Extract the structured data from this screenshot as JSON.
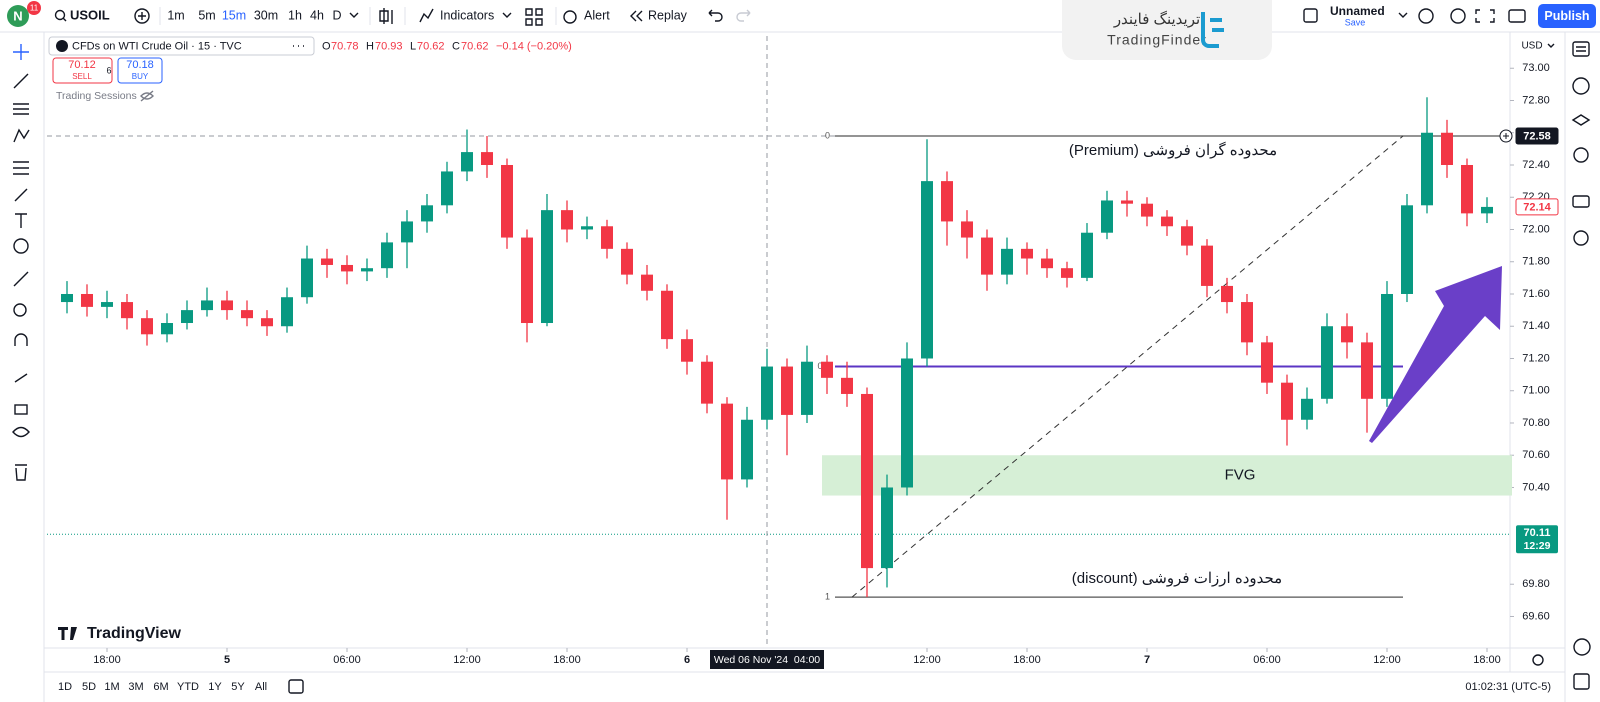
{
  "top_bar": {
    "avatar": "N",
    "badge": "11",
    "symbol": "USOIL",
    "intervals": [
      "1m",
      "5m",
      "15m",
      "30m",
      "1h",
      "4h",
      "D"
    ],
    "indicators": "Indicators",
    "alert": "Alert",
    "replay": "Replay",
    "layout_name": "Unnamed",
    "save": "Save",
    "publish": "Publish"
  },
  "watermark": {
    "persian": "تریدینگ فایندر",
    "latin": "TradingFinder"
  },
  "legend": {
    "title": "CFDs on WTI Crude Oil · 15 · TVC",
    "o_label": "O",
    "open": "70.78",
    "h_label": "H",
    "high": "70.93",
    "l_label": "L",
    "low": "70.62",
    "c_label": "C",
    "close": "70.62",
    "change": "−0.14 (−0.20%)"
  },
  "trade": {
    "sell_price": "70.12",
    "sell": "SELL",
    "spread": "6",
    "buy_price": "70.18",
    "buy": "BUY"
  },
  "indicator_name": "Trading Sessions",
  "brand": "TradingView",
  "currency": "USD",
  "bottom_bar": {
    "ranges": [
      "1D",
      "5D",
      "1M",
      "3M",
      "6M",
      "YTD",
      "1Y",
      "5Y",
      "All"
    ],
    "clock": "01:02:31 (UTC-5)"
  },
  "chart_data": {
    "type": "candlestick",
    "up_color": "#089981",
    "down_color": "#f23645",
    "x": [
      1,
      2,
      3,
      4,
      5,
      6,
      7,
      8,
      9,
      10,
      11,
      12,
      13,
      14,
      15,
      16,
      17,
      18,
      19,
      20,
      21,
      22,
      23,
      24,
      25,
      26,
      27,
      28,
      29,
      30,
      31,
      32,
      33,
      34,
      35,
      36,
      37,
      38,
      39,
      40,
      41,
      42,
      43,
      44,
      45,
      46,
      47,
      48,
      49,
      50,
      51,
      52,
      53,
      54,
      55,
      56,
      57,
      58,
      59,
      60,
      61,
      62,
      63,
      64,
      65,
      66,
      67,
      68,
      69,
      70,
      71,
      72
    ],
    "open": [
      71.55,
      71.6,
      71.52,
      71.55,
      71.45,
      71.35,
      71.42,
      71.5,
      71.56,
      71.5,
      71.45,
      71.4,
      71.58,
      71.82,
      71.78,
      71.74,
      71.76,
      71.92,
      72.05,
      72.15,
      72.36,
      72.48,
      72.4,
      71.95,
      71.42,
      72.12,
      72.0,
      72.02,
      71.88,
      71.72,
      71.62,
      71.32,
      71.18,
      70.92,
      70.45,
      70.82,
      71.15,
      70.85,
      71.18,
      71.08,
      70.98,
      69.9,
      70.4,
      71.2,
      72.3,
      72.05,
      71.95,
      71.72,
      71.88,
      71.82,
      71.76,
      71.7,
      71.98,
      72.18,
      72.16,
      72.08,
      72.02,
      71.9,
      71.65,
      71.55,
      71.3,
      71.05,
      70.82,
      70.95,
      71.4,
      71.3,
      70.95,
      71.6,
      72.15,
      72.6,
      72.4,
      72.1
    ],
    "high": [
      71.68,
      71.66,
      71.62,
      71.6,
      71.5,
      71.48,
      71.56,
      71.64,
      71.62,
      71.56,
      71.5,
      71.64,
      71.9,
      71.88,
      71.84,
      71.82,
      71.98,
      72.12,
      72.22,
      72.42,
      72.62,
      72.58,
      72.44,
      72.0,
      72.22,
      72.18,
      72.08,
      72.06,
      71.92,
      71.78,
      71.66,
      71.38,
      71.22,
      70.96,
      70.9,
      71.26,
      71.2,
      71.28,
      71.22,
      71.18,
      71.02,
      70.48,
      71.3,
      72.56,
      72.36,
      72.12,
      72.0,
      71.95,
      71.92,
      71.88,
      71.8,
      72.04,
      72.24,
      72.24,
      72.2,
      72.12,
      72.06,
      71.94,
      71.7,
      71.6,
      71.34,
      71.1,
      71.02,
      71.48,
      71.48,
      71.36,
      71.68,
      72.22,
      72.82,
      72.68,
      72.44,
      72.2
    ],
    "low": [
      71.48,
      71.46,
      71.45,
      71.38,
      71.28,
      71.3,
      71.38,
      71.46,
      71.44,
      71.4,
      71.34,
      71.36,
      71.54,
      71.7,
      71.66,
      71.68,
      71.7,
      71.76,
      71.98,
      72.1,
      72.3,
      72.32,
      71.88,
      71.3,
      71.4,
      71.92,
      71.94,
      71.82,
      71.66,
      71.56,
      71.26,
      71.1,
      70.86,
      70.2,
      70.4,
      70.76,
      70.6,
      70.8,
      70.98,
      70.9,
      69.72,
      69.78,
      70.35,
      71.15,
      71.9,
      71.82,
      71.62,
      71.66,
      71.72,
      71.7,
      71.64,
      71.68,
      71.94,
      72.08,
      72.02,
      71.96,
      71.84,
      71.58,
      71.48,
      71.22,
      70.98,
      70.66,
      70.76,
      70.92,
      71.2,
      70.74,
      70.9,
      71.55,
      72.1,
      72.32,
      72.02,
      72.04
    ],
    "close": [
      71.6,
      71.52,
      71.55,
      71.45,
      71.35,
      71.42,
      71.5,
      71.56,
      71.5,
      71.45,
      71.4,
      71.58,
      71.82,
      71.78,
      71.74,
      71.76,
      71.92,
      72.05,
      72.15,
      72.36,
      72.48,
      72.4,
      71.95,
      71.42,
      72.12,
      72.0,
      72.02,
      71.88,
      71.72,
      71.62,
      71.32,
      71.18,
      70.92,
      70.45,
      70.82,
      71.15,
      70.85,
      71.18,
      71.08,
      70.98,
      69.9,
      70.4,
      71.2,
      72.3,
      72.05,
      71.95,
      71.72,
      71.88,
      71.82,
      71.76,
      71.7,
      71.98,
      72.18,
      72.16,
      72.08,
      72.02,
      71.9,
      71.65,
      71.55,
      71.3,
      71.05,
      70.82,
      70.95,
      71.4,
      71.3,
      70.95,
      71.6,
      72.15,
      72.6,
      72.4,
      72.1,
      72.14
    ],
    "xlim": [
      0,
      73
    ],
    "xticks": [
      {
        "value": 3,
        "label": "18:00"
      },
      {
        "value": 9,
        "label": "5"
      },
      {
        "value": 15,
        "label": "06:00"
      },
      {
        "value": 21,
        "label": "12:00"
      },
      {
        "value": 26,
        "label": "18:00"
      },
      {
        "value": 32,
        "label": "6"
      },
      {
        "value": 44,
        "label": "12:00"
      },
      {
        "value": 49,
        "label": "18:00"
      },
      {
        "value": 55,
        "label": "7"
      },
      {
        "value": 61,
        "label": "06:00"
      },
      {
        "value": 67,
        "label": "12:00"
      },
      {
        "value": 72,
        "label": "18:00"
      }
    ],
    "ylim": [
      69.42,
      73.2
    ],
    "yticks": [
      {
        "value": 69.6,
        "label": "69.60"
      },
      {
        "value": 69.8,
        "label": "69.80"
      },
      {
        "value": 70.4,
        "label": "70.40"
      },
      {
        "value": 70.6,
        "label": "70.60"
      },
      {
        "value": 70.8,
        "label": "70.80"
      },
      {
        "value": 71,
        "label": "71.00"
      },
      {
        "value": 71.2,
        "label": "71.20"
      },
      {
        "value": 71.4,
        "label": "71.40"
      },
      {
        "value": 71.6,
        "label": "71.60"
      },
      {
        "value": 71.8,
        "label": "71.80"
      },
      {
        "value": 72,
        "label": "72.00"
      },
      {
        "value": 72.2,
        "label": "72.20"
      },
      {
        "value": 72.4,
        "label": "72.40"
      },
      {
        "value": 72.6,
        "label": "72.60"
      },
      {
        "value": 72.8,
        "label": "72.80"
      },
      {
        "value": 73,
        "label": "73.00"
      }
    ],
    "crosshair": {
      "x": 36,
      "x_label": "Wed 06 Nov '24  04:00",
      "y": 72.58
    },
    "last_price": 72.14,
    "bid_line": {
      "value": 70.11,
      "countdown": "12:29",
      "color": "#089981"
    },
    "fib": {
      "color": "#555555",
      "levels": [
        {
          "level": 0,
          "price": 72.58
        },
        {
          "level": 0.5,
          "price": 71.15,
          "color": "#5b35c4"
        },
        {
          "level": 1,
          "price": 69.72
        }
      ]
    },
    "fvg": {
      "top": 70.6,
      "bottom": 70.35,
      "label": "FVG",
      "color": "#d6efd6"
    },
    "annotations": {
      "premium": "محدوده گران فروشی (Premium)",
      "discount": "محدوده ارزات فروشی (discount)"
    }
  }
}
